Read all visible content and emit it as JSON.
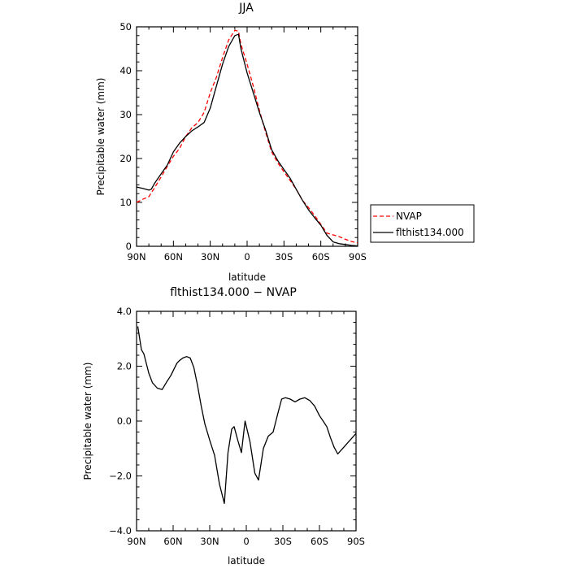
{
  "chart_data": [
    {
      "type": "line",
      "title": "JJA",
      "xlabel": "latitude",
      "ylabel": "Precipitable water (mm)",
      "xlim": [
        90,
        -90
      ],
      "ylim": [
        0,
        50
      ],
      "x_ticks": [
        90,
        60,
        30,
        0,
        -30,
        -60,
        -90
      ],
      "x_tick_labels": [
        "90N",
        "60N",
        "30N",
        "0",
        "30S",
        "60S",
        "90S"
      ],
      "y_ticks": [
        0,
        10,
        20,
        30,
        40,
        50
      ],
      "y_tick_labels": [
        "0",
        "10",
        "20",
        "30",
        "40",
        "50"
      ],
      "grid": false,
      "legend_position": "right",
      "series": [
        {
          "name": "NVAP",
          "color": "#ff0000",
          "dash": "dashed",
          "x": [
            90,
            85,
            80,
            75,
            70,
            65,
            60,
            55,
            50,
            45,
            40,
            35,
            30,
            25,
            20,
            15,
            10,
            7,
            5,
            0,
            -5,
            -10,
            -15,
            -20,
            -25,
            -30,
            -35,
            -40,
            -45,
            -50,
            -55,
            -60,
            -65,
            -70,
            -75,
            -80,
            -85,
            -90
          ],
          "y": [
            10.0,
            10.7,
            11.3,
            13.5,
            15.8,
            18.2,
            20.5,
            22.3,
            25.0,
            27.0,
            28.2,
            30.5,
            35.0,
            38.5,
            43.0,
            47.0,
            49.2,
            49.0,
            46.0,
            41.5,
            36.5,
            31.0,
            26.0,
            21.5,
            19.0,
            17.0,
            15.0,
            13.0,
            10.5,
            8.8,
            7.0,
            5.0,
            3.0,
            2.6,
            2.2,
            1.6,
            1.1,
            0.8
          ]
        },
        {
          "name": "flthist134.000",
          "color": "#000000",
          "dash": "solid",
          "x": [
            90,
            85,
            80,
            78,
            75,
            70,
            65,
            60,
            55,
            50,
            45,
            40,
            35,
            30,
            25,
            20,
            15,
            10,
            7,
            5,
            0,
            -5,
            -10,
            -15,
            -20,
            -25,
            -30,
            -35,
            -40,
            -45,
            -50,
            -55,
            -60,
            -65,
            -70,
            -75,
            -80,
            -85,
            -90
          ],
          "y": [
            13.5,
            13.2,
            12.8,
            13.0,
            14.5,
            16.5,
            18.5,
            21.5,
            23.5,
            25.0,
            26.3,
            27.2,
            28.2,
            31.5,
            36.5,
            41.5,
            45.5,
            48.0,
            48.3,
            45.0,
            39.5,
            35.0,
            30.5,
            26.5,
            22.0,
            19.5,
            17.5,
            15.5,
            13.0,
            10.5,
            8.3,
            6.5,
            4.8,
            2.5,
            1.0,
            0.6,
            0.4,
            0.2,
            0.1
          ]
        }
      ]
    },
    {
      "type": "line",
      "title": "flthist134.000 − NVAP",
      "xlabel": "latitude",
      "ylabel": "Precipitable water (mm)",
      "xlim": [
        90,
        -90
      ],
      "ylim": [
        -4,
        4
      ],
      "x_ticks": [
        90,
        60,
        30,
        0,
        -30,
        -60,
        -90
      ],
      "x_tick_labels": [
        "90N",
        "60N",
        "30N",
        "0",
        "30S",
        "60S",
        "90S"
      ],
      "y_ticks": [
        -4,
        -2,
        0,
        2,
        4
      ],
      "y_tick_labels": [
        "−4.0",
        "−2.0",
        "0.0",
        "2.0",
        "4.0"
      ],
      "grid": false,
      "series": [
        {
          "color": "#000000",
          "dash": "solid",
          "x": [
            89,
            86,
            84,
            82,
            80,
            77,
            73,
            69,
            65,
            62,
            57,
            55,
            52,
            49,
            46,
            43,
            40,
            37,
            34,
            30,
            26,
            22,
            18,
            15,
            12,
            10,
            7,
            4,
            1,
            -3,
            -7,
            -10,
            -14,
            -18,
            -22,
            -26,
            -29,
            -32,
            -36,
            -40,
            -44,
            -48,
            -52,
            -56,
            -60,
            -63,
            -66,
            -69,
            -72,
            -75,
            -78,
            -81,
            -84,
            -87,
            -90
          ],
          "y": [
            3.45,
            2.6,
            2.45,
            2.1,
            1.75,
            1.4,
            1.2,
            1.15,
            1.45,
            1.65,
            2.1,
            2.2,
            2.3,
            2.35,
            2.3,
            1.95,
            1.3,
            0.55,
            -0.1,
            -0.7,
            -1.25,
            -2.3,
            -3.0,
            -1.15,
            -0.3,
            -0.2,
            -0.7,
            -1.15,
            0.0,
            -0.75,
            -1.9,
            -2.15,
            -1.0,
            -0.55,
            -0.4,
            0.3,
            0.8,
            0.85,
            0.8,
            0.7,
            0.8,
            0.85,
            0.75,
            0.55,
            0.2,
            0.0,
            -0.2,
            -0.6,
            -0.95,
            -1.2,
            -1.05,
            -0.9,
            -0.75,
            -0.6,
            -0.45
          ]
        }
      ]
    }
  ]
}
